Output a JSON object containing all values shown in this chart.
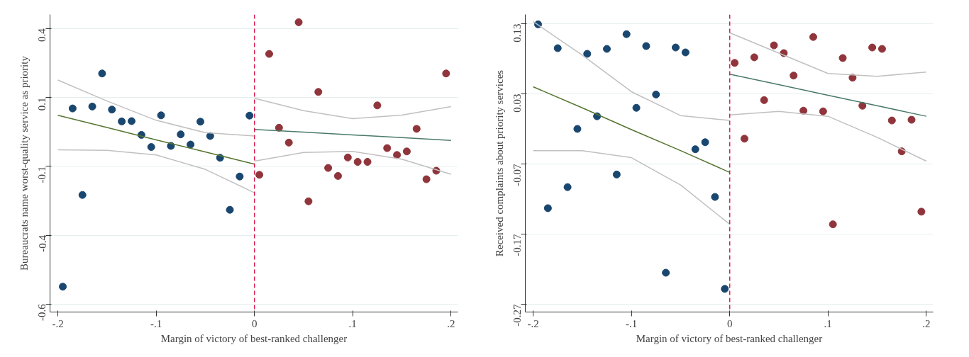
{
  "chart_data": [
    {
      "type": "scatter",
      "xlabel": "Margin of victory of best-ranked challenger",
      "ylabel": "Bureaucrats name worst-quality service as priority",
      "xlim": [
        -0.208,
        0.207
      ],
      "ylim": [
        -0.629,
        0.451
      ],
      "xticks": [
        {
          "value": -0.2,
          "label": "-.2"
        },
        {
          "value": -0.1,
          "label": "-.1"
        },
        0,
        {
          "value": 0.1,
          "label": ".1"
        },
        {
          "value": 0.2,
          "label": ".2"
        }
      ],
      "yticks": [
        {
          "value": -0.6,
          "label": "-0.6"
        },
        {
          "value": -0.35,
          "label": "-0.4"
        },
        {
          "value": -0.1,
          "label": "-0.1"
        },
        {
          "value": 0.15,
          "label": "0.1"
        },
        {
          "value": 0.4,
          "label": "0.4"
        }
      ],
      "grid": "y",
      "marker": "circle",
      "ref_lines": [
        {
          "axis": "x",
          "value": 0,
          "color": "#d81b4f",
          "line_style": "dashed"
        }
      ],
      "series": [
        {
          "color": "#1a476f",
          "x": [
            -0.195,
            -0.185,
            -0.175,
            -0.165,
            -0.155,
            -0.145,
            -0.135,
            -0.125,
            -0.115,
            -0.105,
            -0.095,
            -0.085,
            -0.075,
            -0.065,
            -0.055,
            -0.045,
            -0.035,
            -0.025,
            -0.015,
            -0.005
          ],
          "values": [
            -0.537,
            0.11,
            -0.204,
            0.117,
            0.237,
            0.106,
            0.063,
            0.064,
            0.014,
            -0.03,
            0.085,
            -0.026,
            0.016,
            -0.021,
            0.062,
            0.01,
            -0.069,
            -0.258,
            -0.137,
            0.084
          ]
        },
        {
          "color": "#90353b",
          "x": [
            0.005,
            0.015,
            0.025,
            0.035,
            0.045,
            0.055,
            0.065,
            0.075,
            0.085,
            0.095,
            0.105,
            0.115,
            0.125,
            0.135,
            0.145,
            0.155,
            0.165,
            0.175,
            0.185,
            0.195
          ],
          "values": [
            -0.131,
            0.308,
            0.04,
            -0.014,
            0.423,
            -0.227,
            0.17,
            -0.106,
            -0.135,
            -0.068,
            -0.084,
            -0.084,
            0.121,
            -0.034,
            -0.059,
            -0.046,
            0.036,
            -0.147,
            -0.116,
            0.237
          ]
        },
        {
          "type": "line",
          "marker": "none",
          "color": "#c0c0c0",
          "x": [
            -0.2,
            -0.15,
            -0.1,
            -0.05,
            0
          ],
          "values": [
            -0.04,
            -0.042,
            -0.059,
            -0.111,
            -0.196
          ]
        },
        {
          "type": "line",
          "marker": "none",
          "color": "#c0c0c0",
          "x": [
            -0.2,
            -0.15,
            -0.1,
            -0.05,
            0
          ],
          "values": [
            0.213,
            0.137,
            0.067,
            0.022,
            0.01
          ]
        },
        {
          "type": "line",
          "marker": "none",
          "color": "#c0c0c0",
          "x": [
            0,
            0.05,
            0.1,
            0.15,
            0.2
          ],
          "values": [
            -0.081,
            -0.05,
            -0.046,
            -0.074,
            -0.129
          ]
        },
        {
          "type": "line",
          "marker": "none",
          "color": "#c0c0c0",
          "x": [
            0,
            0.05,
            0.1,
            0.15,
            0.2
          ],
          "values": [
            0.147,
            0.102,
            0.073,
            0.086,
            0.117
          ]
        },
        {
          "type": "line",
          "marker": "none",
          "color": "#55752f",
          "x": [
            -0.2,
            -0.15,
            -0.1,
            -0.05,
            0
          ],
          "values": [
            0.085,
            0.041,
            -0.004,
            -0.048,
            -0.092
          ]
        },
        {
          "type": "line",
          "marker": "none",
          "color": "#4a7a6a",
          "x": [
            0,
            0.05,
            0.1,
            0.15,
            0.2
          ],
          "values": [
            0.034,
            0.024,
            0.014,
            0.004,
            -0.006
          ]
        }
      ]
    },
    {
      "type": "scatter",
      "xlabel": "Margin of victory of best-ranked challenger",
      "ylabel": "Received complaints about priority services",
      "xlim": [
        -0.208,
        0.207
      ],
      "ylim": [
        -0.281,
        0.143
      ],
      "xticks": [
        {
          "value": -0.2,
          "label": "-.2"
        },
        {
          "value": -0.1,
          "label": "-.1"
        },
        0,
        {
          "value": 0.1,
          "label": ".1"
        },
        {
          "value": 0.2,
          "label": ".2"
        }
      ],
      "yticks": [
        {
          "value": -0.27,
          "label": "-0.27"
        },
        {
          "value": -0.17,
          "label": "-0.17"
        },
        {
          "value": -0.07,
          "label": "-0.07"
        },
        {
          "value": 0.03,
          "label": "0.03"
        },
        0.13
      ],
      "grid": "y",
      "marker": "circle",
      "ref_lines": [
        {
          "axis": "x",
          "value": 0,
          "color": "#d81b4f",
          "line_style": "dashed"
        }
      ],
      "series": [
        {
          "color": "#1a476f",
          "x": [
            -0.195,
            -0.185,
            -0.175,
            -0.165,
            -0.155,
            -0.145,
            -0.135,
            -0.125,
            -0.115,
            -0.105,
            -0.095,
            -0.085,
            -0.075,
            -0.065,
            -0.055,
            -0.045,
            -0.035,
            -0.025,
            -0.015,
            -0.005
          ],
          "values": [
            0.129,
            -0.133,
            0.095,
            -0.103,
            -0.02,
            0.087,
            -0.002,
            0.094,
            -0.085,
            0.115,
            0.01,
            0.098,
            0.029,
            -0.225,
            0.096,
            0.089,
            -0.049,
            -0.039,
            -0.117,
            -0.248
          ]
        },
        {
          "color": "#90353b",
          "x": [
            0.005,
            0.015,
            0.025,
            0.035,
            0.045,
            0.055,
            0.065,
            0.075,
            0.085,
            0.095,
            0.105,
            0.115,
            0.125,
            0.135,
            0.145,
            0.155,
            0.165,
            0.175,
            0.185,
            0.195
          ],
          "values": [
            0.074,
            -0.034,
            0.082,
            0.021,
            0.099,
            0.088,
            0.056,
            0.006,
            0.111,
            0.005,
            -0.156,
            0.081,
            0.053,
            0.013,
            0.096,
            0.094,
            -0.008,
            -0.052,
            -0.007,
            -0.138
          ]
        },
        {
          "type": "line",
          "marker": "none",
          "color": "#c0c0c0",
          "x": [
            -0.2,
            -0.15,
            -0.1,
            -0.05,
            0
          ],
          "values": [
            -0.051,
            -0.051,
            -0.061,
            -0.1,
            -0.156
          ]
        },
        {
          "type": "line",
          "marker": "none",
          "color": "#c0c0c0",
          "x": [
            -0.2,
            -0.15,
            -0.1,
            -0.05,
            0
          ],
          "values": [
            0.133,
            0.085,
            0.033,
            -0.001,
            -0.008
          ]
        },
        {
          "type": "line",
          "marker": "none",
          "color": "#c0c0c0",
          "x": [
            0,
            0.05,
            0.1,
            0.15,
            0.2
          ],
          "values": [
            0.0,
            0.005,
            -0.002,
            -0.032,
            -0.066
          ]
        },
        {
          "type": "line",
          "marker": "none",
          "color": "#c0c0c0",
          "x": [
            0,
            0.05,
            0.1,
            0.15,
            0.2
          ],
          "values": [
            0.117,
            0.088,
            0.059,
            0.055,
            0.061
          ]
        },
        {
          "type": "line",
          "marker": "none",
          "color": "#55752f",
          "x": [
            -0.2,
            -0.15,
            -0.1,
            -0.05,
            0
          ],
          "values": [
            0.04,
            0.01,
            -0.021,
            -0.051,
            -0.082
          ]
        },
        {
          "type": "line",
          "marker": "none",
          "color": "#4a7a6a",
          "x": [
            0,
            0.05,
            0.1,
            0.15,
            0.2
          ],
          "values": [
            0.058,
            0.043,
            0.028,
            0.013,
            -0.002
          ]
        }
      ]
    }
  ]
}
